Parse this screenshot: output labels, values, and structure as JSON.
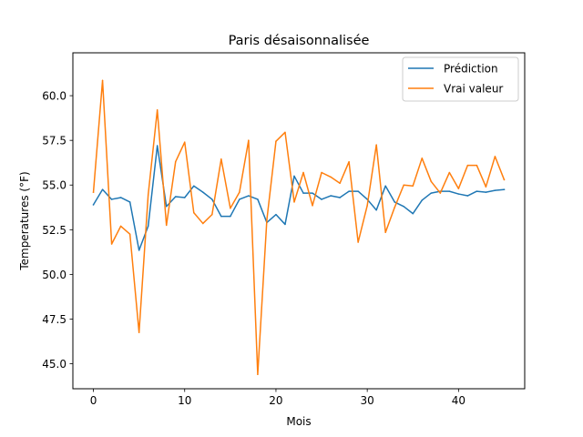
{
  "chart_data": {
    "type": "line",
    "title": "Paris désaisonnalisée",
    "xlabel": "Mois",
    "ylabel": "Temperatures (°F)",
    "xlim": [
      -2.25,
      47.25
    ],
    "ylim": [
      43.6,
      62.4
    ],
    "xticks": [
      0,
      10,
      20,
      30,
      40
    ],
    "yticks": [
      45.0,
      47.5,
      50.0,
      52.5,
      55.0,
      57.5,
      60.0
    ],
    "xtick_labels": [
      "0",
      "10",
      "20",
      "30",
      "40"
    ],
    "ytick_labels": [
      "45.0",
      "47.5",
      "50.0",
      "52.5",
      "55.0",
      "57.5",
      "60.0"
    ],
    "grid": false,
    "legend_position": "top-right",
    "x": [
      0,
      1,
      2,
      3,
      4,
      5,
      6,
      7,
      8,
      9,
      10,
      11,
      12,
      13,
      14,
      15,
      16,
      17,
      18,
      19,
      20,
      21,
      22,
      23,
      24,
      25,
      26,
      27,
      28,
      29,
      30,
      31,
      32,
      33,
      34,
      35,
      36,
      37,
      38,
      39,
      40,
      41,
      42,
      43,
      44,
      45
    ],
    "series": [
      {
        "name": "Prédiction",
        "color": "#1f77b4",
        "values": [
          53.9,
          54.75,
          54.2,
          54.3,
          54.05,
          51.35,
          52.7,
          57.2,
          53.8,
          54.35,
          54.3,
          54.95,
          54.6,
          54.2,
          53.25,
          53.25,
          54.2,
          54.4,
          54.2,
          52.9,
          53.35,
          52.8,
          55.5,
          54.55,
          54.55,
          54.2,
          54.4,
          54.3,
          54.65,
          54.65,
          54.2,
          53.6,
          54.95,
          54.05,
          53.8,
          53.4,
          54.15,
          54.55,
          54.65,
          54.65,
          54.5,
          54.4,
          54.65,
          54.6,
          54.7,
          54.75
        ]
      },
      {
        "name": "Vrai valeur",
        "color": "#ff7f0e",
        "values": [
          54.6,
          60.85,
          51.7,
          52.7,
          52.25,
          46.75,
          54.45,
          59.2,
          52.75,
          56.3,
          57.4,
          53.45,
          52.85,
          53.35,
          56.45,
          53.7,
          54.6,
          57.5,
          44.4,
          53.05,
          57.45,
          57.95,
          54.05,
          55.7,
          53.85,
          55.7,
          55.45,
          55.1,
          56.3,
          51.8,
          53.85,
          57.25,
          52.35,
          53.75,
          55.0,
          54.95,
          56.5,
          55.2,
          54.55,
          55.7,
          54.8,
          56.1,
          56.1,
          54.9,
          56.6,
          55.3
        ]
      }
    ]
  }
}
